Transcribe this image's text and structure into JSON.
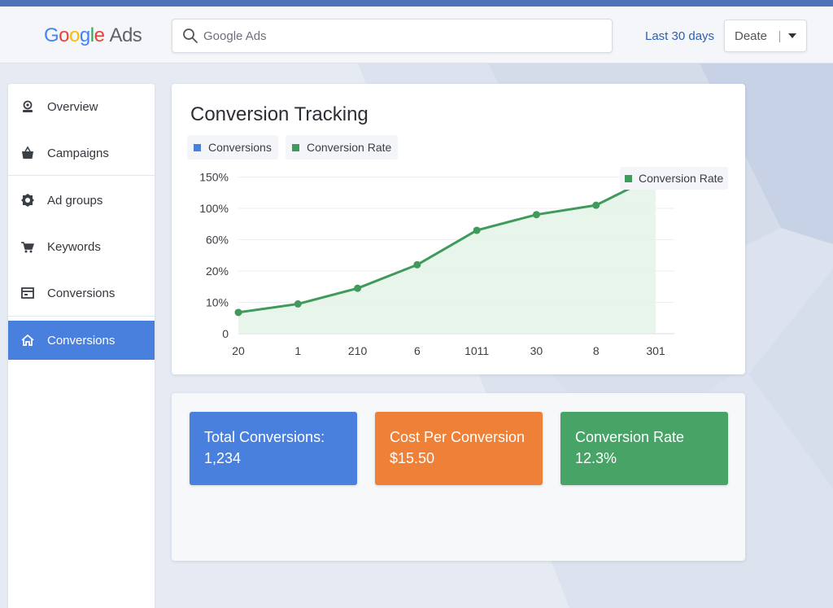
{
  "header": {
    "logo": {
      "g1": "G",
      "g2": "o",
      "g3": "o",
      "g4": "g",
      "g5": "l",
      "g6": "e",
      "ads": "Ads"
    },
    "search_placeholder": "Google Ads",
    "date_range": "Last 30 days",
    "date_select_value": "Deate"
  },
  "sidebar": {
    "items": [
      {
        "label": "Overview",
        "icon": "user-circle-icon"
      },
      {
        "label": "Campaigns",
        "icon": "basket-icon"
      },
      {
        "label": "Ad groups",
        "icon": "gear-icon"
      },
      {
        "label": "Keywords",
        "icon": "cart-icon"
      },
      {
        "label": "Conversions",
        "icon": "register-icon"
      },
      {
        "label": "Conversions",
        "icon": "home-icon"
      }
    ],
    "active_index": 5
  },
  "chart": {
    "title": "Conversion Tracking",
    "legend": [
      {
        "label": "Conversions",
        "color": "#4a80dd"
      },
      {
        "label": "Conversion Rate",
        "color": "#3f9a5c"
      }
    ],
    "series_tag": "Conversion Rate"
  },
  "chart_data": {
    "type": "line",
    "categories": [
      "20",
      "1",
      "210",
      "6",
      "1011",
      "30",
      "8",
      "301"
    ],
    "y_ticks": [
      "150%",
      "100%",
      "60%",
      "20%",
      "10%",
      "0"
    ],
    "series": [
      {
        "name": "Conversion Rate",
        "color": "#3f9a5c",
        "values_tick_index": [
          0.68,
          0.95,
          1.45,
          2.2,
          3.3,
          3.8,
          4.1,
          5.05
        ]
      }
    ],
    "area_fill": true,
    "grid": true,
    "legend_position": "top-left"
  },
  "stats": [
    {
      "label": "Total Conversions:",
      "value": "1,234",
      "color": "#4a80dd"
    },
    {
      "label": "Cost Per Conversion",
      "value": "$15.50",
      "color": "#ee8038"
    },
    {
      "label": "Conversion Rate",
      "value": "12.3%",
      "color": "#48a366"
    }
  ]
}
